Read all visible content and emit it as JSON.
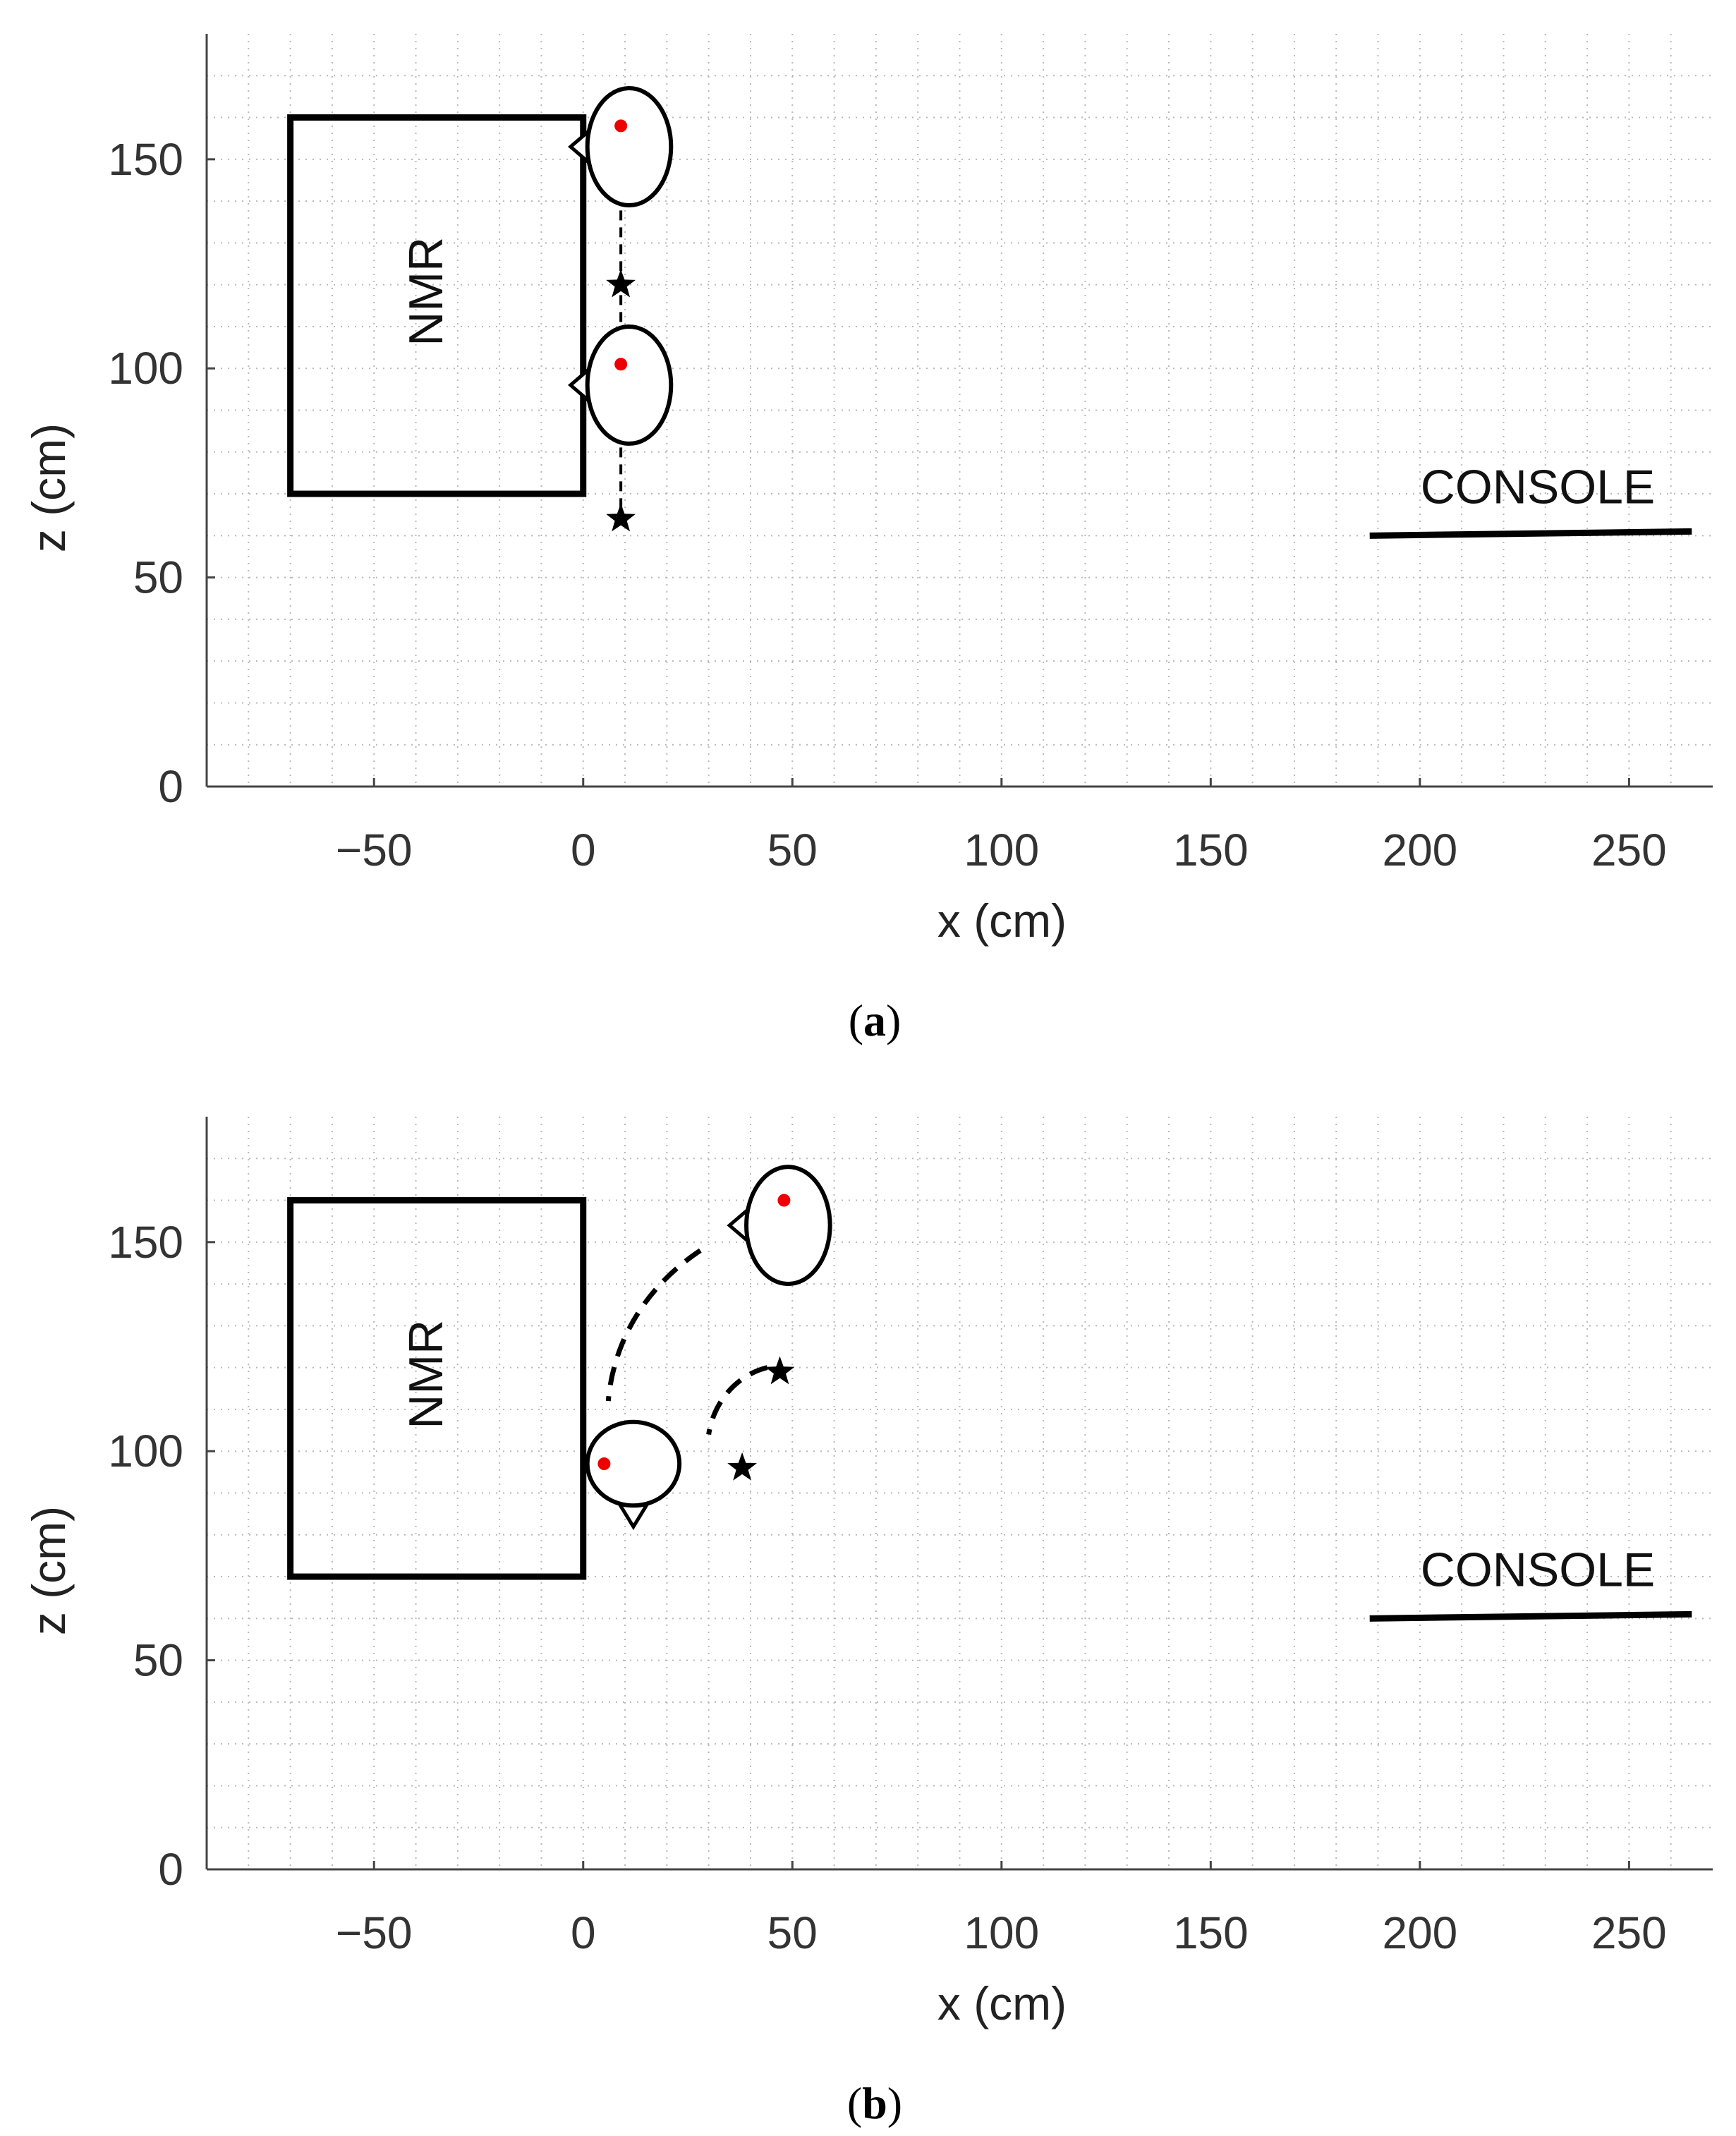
{
  "chart_data": [
    {
      "panel": "a",
      "type": "scatter",
      "caption": {
        "open": "(",
        "letter": "a",
        "close": ")"
      },
      "xlabel": "x (cm)",
      "ylabel": "z (cm)",
      "xlim": [
        -90,
        270
      ],
      "ylim": [
        0,
        180
      ],
      "xticks": [
        -50,
        0,
        50,
        100,
        150,
        200,
        250
      ],
      "yticks": [
        0,
        50,
        100,
        150
      ],
      "grid": "minor dotted",
      "nmr": {
        "label": "NMR",
        "x": [
          -70,
          0
        ],
        "z": [
          70,
          160
        ]
      },
      "console": {
        "label": "CONSOLE",
        "x": [
          188,
          265
        ],
        "z": [
          60,
          61
        ]
      },
      "heads": [
        {
          "x": 11,
          "z": 153,
          "rx": 10,
          "rz": 14,
          "nose": "left",
          "dot": [
            9,
            158
          ]
        },
        {
          "x": 11,
          "z": 96,
          "rx": 10,
          "rz": 14,
          "nose": "left",
          "dot": [
            9,
            101
          ]
        }
      ],
      "stars": [
        {
          "x": 9,
          "z": 120
        },
        {
          "x": 9,
          "z": 64
        }
      ],
      "paths": [
        {
          "points": [
            [
              9,
              158
            ],
            [
              9,
              64
            ]
          ]
        }
      ]
    },
    {
      "panel": "b",
      "type": "scatter",
      "caption": {
        "open": "(",
        "letter": "b",
        "close": ")"
      },
      "xlabel": "x (cm)",
      "ylabel": "z (cm)",
      "xlim": [
        -90,
        270
      ],
      "ylim": [
        0,
        180
      ],
      "xticks": [
        -50,
        0,
        50,
        100,
        150,
        200,
        250
      ],
      "yticks": [
        0,
        50,
        100,
        150
      ],
      "grid": "minor dotted",
      "nmr": {
        "label": "NMR",
        "x": [
          -70,
          0
        ],
        "z": [
          70,
          160
        ]
      },
      "console": {
        "label": "CONSOLE",
        "x": [
          188,
          265
        ],
        "z": [
          60,
          61
        ]
      },
      "heads": [
        {
          "x": 49,
          "z": 154,
          "rx": 10,
          "rz": 14,
          "nose": "left",
          "dot": [
            48,
            160
          ]
        },
        {
          "x": 12,
          "z": 97,
          "rx": 11,
          "rz": 10,
          "nose": "down",
          "dot": [
            5,
            97
          ]
        }
      ],
      "stars": [
        {
          "x": 47,
          "z": 119
        },
        {
          "x": 38,
          "z": 96
        }
      ],
      "paths": [
        {
          "points": [
            [
              28,
              148
            ],
            [
              13,
              138
            ],
            [
              7,
              124
            ],
            [
              6,
              112
            ]
          ]
        },
        {
          "points": [
            [
              44,
              120
            ],
            [
              36,
              118
            ],
            [
              31,
              111
            ],
            [
              30,
              104
            ]
          ]
        }
      ]
    }
  ]
}
